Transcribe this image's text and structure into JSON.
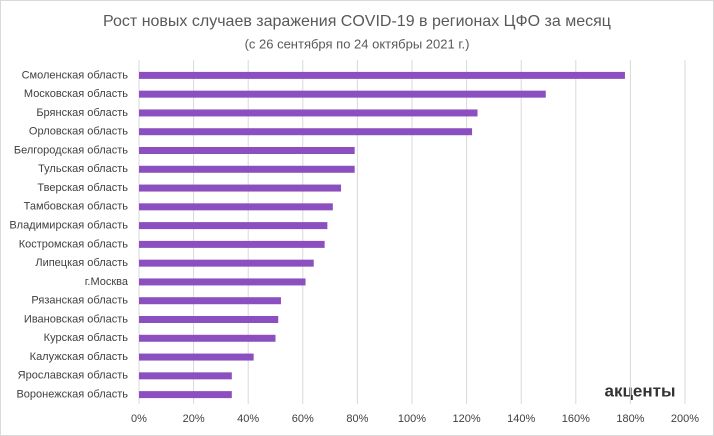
{
  "chart_data": {
    "type": "barh",
    "title": "Рост новых случаев заражения COVID-19 в регионах ЦФО за месяц",
    "subtitle": "(с 26 сентября по 24 октябры 2021  г.)",
    "categories": [
      "Смоленская область",
      "Московская область",
      "Брянская область",
      "Орловская область",
      "Белгородская область",
      "Тульская область",
      "Тверская область",
      "Тамбовская область",
      "Владимирская область",
      "Костромская область",
      "Липецкая область",
      "г.Москва",
      "Рязанская область",
      "Ивановская область",
      "Курская область",
      "Калужская область",
      "Ярославская область",
      "Воронежская область"
    ],
    "values": [
      178,
      149,
      124,
      122,
      79,
      79,
      74,
      71,
      69,
      68,
      64,
      61,
      52,
      51,
      50,
      42,
      34,
      34
    ],
    "color": "#8b4fc0",
    "xlim": [
      0,
      200
    ],
    "xticks": [
      {
        "value": 0,
        "label": "0%"
      },
      {
        "value": 20,
        "label": "20%"
      },
      {
        "value": 40,
        "label": "40%"
      },
      {
        "value": 60,
        "label": "60%"
      },
      {
        "value": 80,
        "label": "80%"
      },
      {
        "value": 100,
        "label": "100%"
      },
      {
        "value": 120,
        "label": "120%"
      },
      {
        "value": 140,
        "label": "140%"
      },
      {
        "value": 160,
        "label": "160%"
      },
      {
        "value": 180,
        "label": "180%"
      },
      {
        "value": 200,
        "label": "200%"
      }
    ],
    "grid": true,
    "watermark": "акценты"
  }
}
